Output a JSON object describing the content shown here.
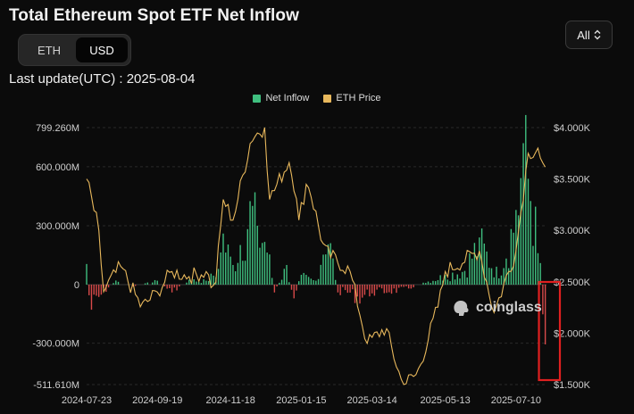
{
  "title": "Total Ethereum Spot ETF Net Inflow",
  "toggle": {
    "eth_label": "ETH",
    "usd_label": "USD",
    "selected": "USD"
  },
  "range_selector": {
    "label": "All",
    "icon": "chevron-up-down-icon"
  },
  "last_update": "Last update(UTC) : 2025-08-04",
  "watermark": {
    "text": "coinglass",
    "icon": "coinglass-logo-icon"
  },
  "colors": {
    "inflow": "#3fbf7f",
    "outflow": "#d94a4a",
    "price": "#e8b85c",
    "highlight_box": "#e02020",
    "grid": "#2a2a2a"
  },
  "chart_data": {
    "type": "bar",
    "legend_position": "top-center",
    "legend": [
      "Net Inflow",
      "ETH Price"
    ],
    "grid": true,
    "x_ticks": [
      "2024-07-23",
      "2024-09-19",
      "2024-11-18",
      "2025-01-15",
      "2025-03-14",
      "2025-05-13",
      "2025-07-10"
    ],
    "y_left_ticks": [
      "799.260M",
      "600.000M",
      "300.000M",
      "0",
      "-300.000M",
      "-511.610M"
    ],
    "y_right_ticks": [
      "$4.000K",
      "$3.500K",
      "$3.000K",
      "$2.500K",
      "$2.000K",
      "$1.500K"
    ],
    "y_left_lim": [
      -511.61,
      799.26
    ],
    "y_right_lim": [
      1500,
      4000
    ],
    "annotation": "red box highlighting the most recent period",
    "series": [
      {
        "name": "Net Inflow",
        "kind": "bar",
        "unit": "USD millions",
        "anchors": [
          [
            "2024-07-23",
            105
          ],
          [
            "2024-07-26",
            -150
          ],
          [
            "2024-08-05",
            -50
          ],
          [
            "2024-08-15",
            20
          ],
          [
            "2024-08-30",
            -10
          ],
          [
            "2024-09-19",
            20
          ],
          [
            "2024-10-01",
            -40
          ],
          [
            "2024-10-15",
            25
          ],
          [
            "2024-10-29",
            20
          ],
          [
            "2024-11-08",
            80
          ],
          [
            "2024-11-12",
            260
          ],
          [
            "2024-11-20",
            100
          ],
          [
            "2024-11-29",
            330
          ],
          [
            "2024-12-05",
            420
          ],
          [
            "2024-12-10",
            300
          ],
          [
            "2024-12-17",
            250
          ],
          [
            "2024-12-24",
            -40
          ],
          [
            "2025-01-03",
            100
          ],
          [
            "2025-01-08",
            -80
          ],
          [
            "2025-01-15",
            50
          ],
          [
            "2025-01-27",
            20
          ],
          [
            "2025-02-05",
            320
          ],
          [
            "2025-02-14",
            -40
          ],
          [
            "2025-02-21",
            -40
          ],
          [
            "2025-03-03",
            -80
          ],
          [
            "2025-03-14",
            -45
          ],
          [
            "2025-03-25",
            -40
          ],
          [
            "2025-04-10",
            -30
          ],
          [
            "2025-04-25",
            10
          ],
          [
            "2025-05-13",
            50
          ],
          [
            "2025-05-28",
            80
          ],
          [
            "2025-06-10",
            240
          ],
          [
            "2025-06-25",
            60
          ],
          [
            "2025-07-10",
            380
          ],
          [
            "2025-07-16",
            720
          ],
          [
            "2025-07-23",
            530
          ],
          [
            "2025-07-28",
            160
          ],
          [
            "2025-07-31",
            80
          ],
          [
            "2025-08-01",
            -152
          ],
          [
            "2025-08-04",
            -465
          ]
        ]
      },
      {
        "name": "ETH Price",
        "kind": "line",
        "unit": "USD",
        "anchors": [
          [
            "2024-07-23",
            3500
          ],
          [
            "2024-08-02",
            3000
          ],
          [
            "2024-08-05",
            2400
          ],
          [
            "2024-08-20",
            2650
          ],
          [
            "2024-09-06",
            2250
          ],
          [
            "2024-09-19",
            2400
          ],
          [
            "2024-10-01",
            2600
          ],
          [
            "2024-10-15",
            2550
          ],
          [
            "2024-10-29",
            2600
          ],
          [
            "2024-11-05",
            2400
          ],
          [
            "2024-11-12",
            3300
          ],
          [
            "2024-11-20",
            3100
          ],
          [
            "2024-12-05",
            3900
          ],
          [
            "2024-12-16",
            4000
          ],
          [
            "2024-12-20",
            3300
          ],
          [
            "2025-01-06",
            3700
          ],
          [
            "2025-01-13",
            3100
          ],
          [
            "2025-01-20",
            3500
          ],
          [
            "2025-02-03",
            2800
          ],
          [
            "2025-02-24",
            2600
          ],
          [
            "2025-03-10",
            1900
          ],
          [
            "2025-03-25",
            2050
          ],
          [
            "2025-04-08",
            1500
          ],
          [
            "2025-04-20",
            1600
          ],
          [
            "2025-05-08",
            2300
          ],
          [
            "2025-05-13",
            2600
          ],
          [
            "2025-06-10",
            2800
          ],
          [
            "2025-06-22",
            2200
          ],
          [
            "2025-07-10",
            2800
          ],
          [
            "2025-07-20",
            3750
          ],
          [
            "2025-07-28",
            3800
          ],
          [
            "2025-08-04",
            3500
          ]
        ]
      }
    ]
  }
}
